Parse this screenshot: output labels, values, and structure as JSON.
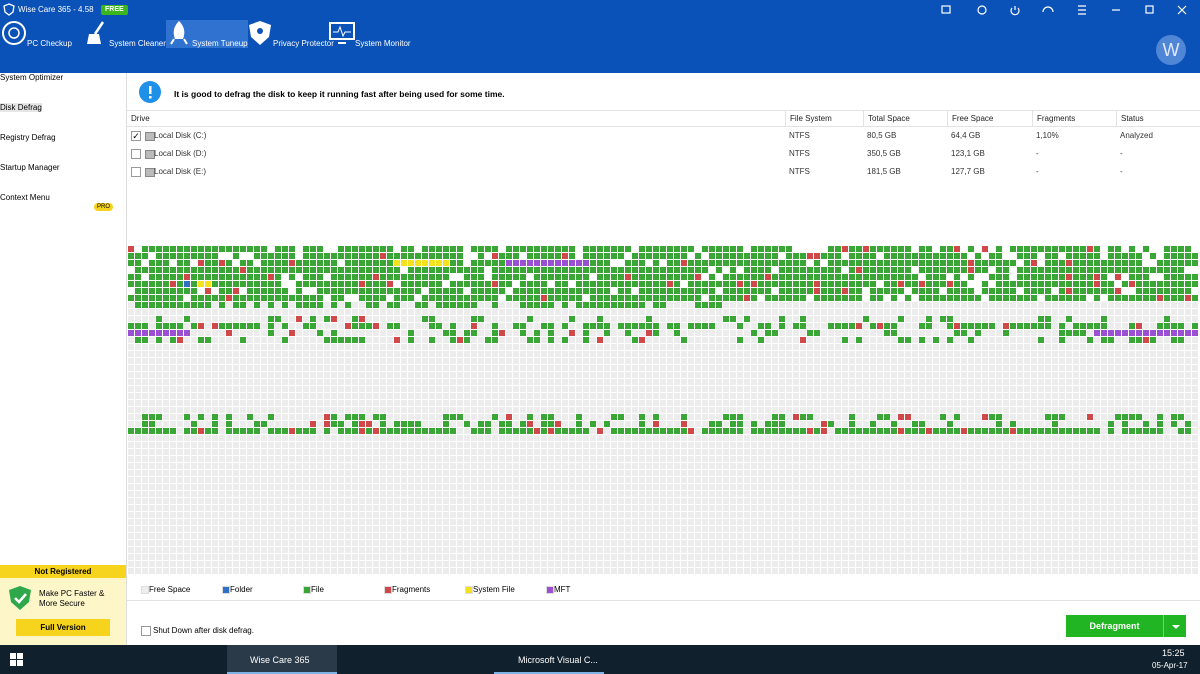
{
  "window": {
    "title": "Wise Care 365 - 4.58",
    "badge": "FREE"
  },
  "nav": [
    "PC Checkup",
    "System Cleaner",
    "System Tuneup",
    "Privacy Protector",
    "System Monitor"
  ],
  "avatar": "W",
  "sidebar": [
    "System Optimizer",
    "Disk Defrag",
    "Registry Defrag",
    "Startup Manager",
    "Context Menu"
  ],
  "pro_badge": "PRO",
  "info": "It is good to defrag the disk to keep it running fast after being used for some time.",
  "table": {
    "headers": [
      "Drive",
      "File System",
      "Total Space",
      "Free Space",
      "Fragments",
      "Status"
    ],
    "rows": [
      [
        "Local Disk (C:)",
        "NTFS",
        "80,5 GB",
        "64,4 GB",
        "1,10%",
        "Analyzed"
      ],
      [
        "Local Disk (D:)",
        "NTFS",
        "350,5 GB",
        "123,1 GB",
        "-",
        "-"
      ],
      [
        "Local Disk (E:)",
        "NTFS",
        "181,5 GB",
        "127,7 GB",
        "-",
        "-"
      ]
    ],
    "checked": [
      true,
      false,
      false
    ]
  },
  "legend": [
    "Free Space",
    "Folder",
    "File",
    "Fragments",
    "System File",
    "MFT"
  ],
  "register": {
    "status": "Not Registered",
    "promo": "Make PC Faster & More Secure",
    "button": "Full Version"
  },
  "shutdown_option": "Shut Down after disk defrag.",
  "action_button": "Defragment",
  "taskbar": {
    "apps": [
      "Wise Care 365",
      "Microsoft Visual C..."
    ],
    "time": "15:25",
    "date": "05-Apr-17"
  }
}
